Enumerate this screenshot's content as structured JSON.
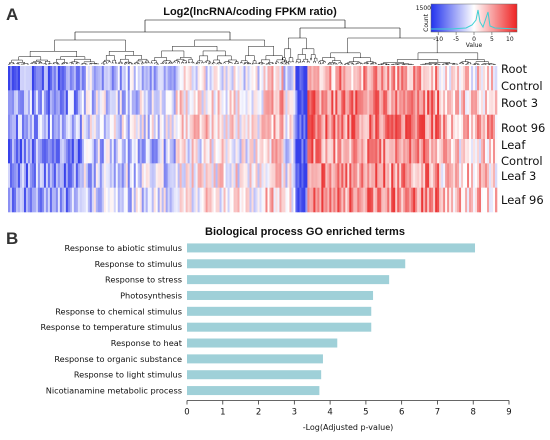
{
  "panel_a": {
    "letter": "A",
    "title": "Log2(lncRNA/coding FPKM ratio)",
    "row_labels": [
      "Root",
      "Control",
      "Root 3",
      "Root 96",
      "Leaf",
      "Control",
      "Leaf 3",
      "Leaf 96"
    ],
    "color_key": {
      "tick_labels": [
        "-10",
        "-5",
        "0",
        "5",
        "10"
      ],
      "xlabel": "Value",
      "ylabel": "Count",
      "count_tick": "1500",
      "low_color": "#2233ee",
      "mid_color": "#ffffff",
      "high_color": "#ee2222",
      "histogram_color": "#3fd0d4"
    }
  },
  "panel_b": {
    "letter": "B"
  },
  "chart_data": [
    {
      "type": "heatmap",
      "title": "Log2(lncRNA/coding FPKM ratio)",
      "rows": [
        "Root Control",
        "Root 3",
        "Root 96",
        "Leaf Control",
        "Leaf 3",
        "Leaf 96"
      ],
      "value_range": [
        -12,
        12
      ],
      "colormap": [
        "blue",
        "white",
        "red"
      ],
      "dendrogram": "top"
    },
    {
      "type": "bar",
      "orientation": "horizontal",
      "title": "Biological process GO enriched terms",
      "categories": [
        "Response to abiotic stimulus",
        "Response to stimulus",
        "Response to stress",
        "Photosynthesis",
        "Response to chemical stimulus",
        "Response to temperature stimulus",
        "Response to heat",
        "Response to organic substance",
        "Response to light stimulus",
        "Nicotianamine metabolic process"
      ],
      "values": [
        8.05,
        6.1,
        5.65,
        5.2,
        5.15,
        5.15,
        4.2,
        3.8,
        3.75,
        3.7
      ],
      "xlabel": "-Log(Adjusted p-value)",
      "xlim": [
        0,
        9
      ],
      "xticks": [
        "0",
        "1",
        "2",
        "3",
        "4",
        "5",
        "6",
        "7",
        "8",
        "9"
      ],
      "bar_color": "#9fd0d8",
      "grid": false
    }
  ]
}
